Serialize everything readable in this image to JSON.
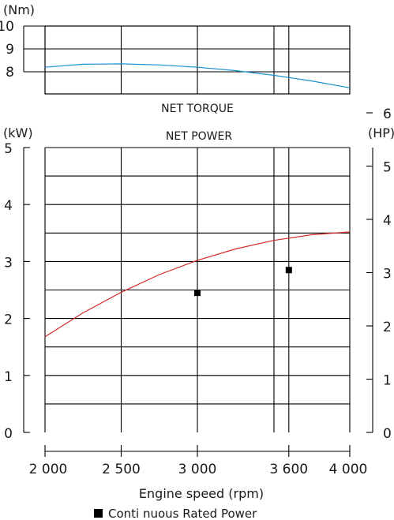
{
  "chart_data": [
    {
      "type": "line",
      "title": "NET TORQUE",
      "ylabel": "(Nm)",
      "x": [
        2000,
        2250,
        2500,
        2750,
        3000,
        3250,
        3500,
        3750,
        4000
      ],
      "ylim": [
        8,
        10
      ],
      "yticks": [
        "8",
        "9",
        "10"
      ],
      "xlim": [
        2000,
        4000
      ],
      "grid": true,
      "series": [
        {
          "values": [
            8.2,
            8.33,
            8.35,
            8.3,
            8.2,
            8.05,
            7.85,
            7.6,
            7.3
          ],
          "color": "#1b8fcf"
        }
      ]
    },
    {
      "type": "line",
      "title": "NET POWER",
      "ylabel": "(kW)",
      "y2label": "(HP)",
      "xlabel": "Engine speed (rpm)",
      "xlim": [
        2000,
        4000
      ],
      "ylim": [
        0,
        5
      ],
      "y2lim": [
        0,
        6.7
      ],
      "xticks": [
        "2 000",
        "2 500",
        "3 000",
        "3 600",
        "4 000"
      ],
      "xtick_values": [
        2000,
        2500,
        3000,
        3600,
        4000
      ],
      "yticks": [
        "0",
        "1",
        "2",
        "3",
        "4",
        "5"
      ],
      "y2ticks": [
        "0",
        "1",
        "2",
        "3",
        "4",
        "5",
        "6"
      ],
      "grid": true,
      "x": [
        2000,
        2250,
        2500,
        2750,
        3000,
        3250,
        3500,
        3750,
        4000
      ],
      "series": [
        {
          "values": [
            1.68,
            2.1,
            2.46,
            2.77,
            3.02,
            3.22,
            3.37,
            3.47,
            3.52
          ],
          "color": "#d42a2a"
        }
      ],
      "points": [
        {
          "x": 3000,
          "y": 2.45
        },
        {
          "x": 3600,
          "y": 2.85
        }
      ],
      "legend": {
        "label": "Conti nuous Rated    Power",
        "placement": "bottom"
      }
    }
  ]
}
